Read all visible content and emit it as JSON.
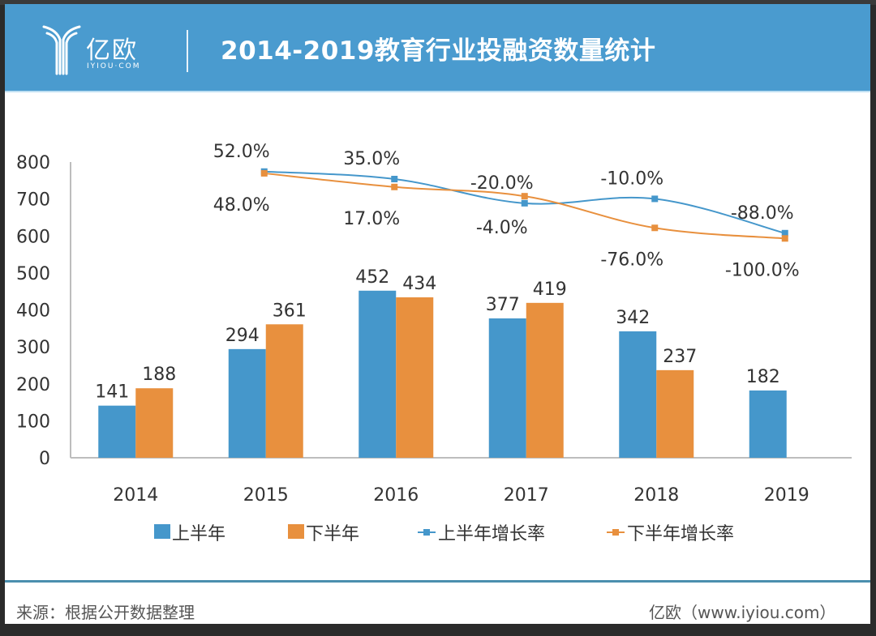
{
  "header": {
    "brand_cn": "亿欧",
    "brand_en": "IYIOU·COM",
    "title": "2014-2019教育行业投融资数量统计"
  },
  "footer": {
    "source": "来源：根据公开数据整理",
    "credit": "亿欧（www.iyiou.com）"
  },
  "colors": {
    "header_bg": "#4a9bcf",
    "first_half": "#4597cb",
    "second_half": "#e8903e",
    "footer_line": "#4a8fae"
  },
  "chart_data": {
    "type": "bar",
    "title": "2014-2019教育行业投融资数量统计",
    "xlabel": "",
    "ylabel": "",
    "ylim": [
      0,
      800
    ],
    "yticks": [
      0,
      100,
      200,
      300,
      400,
      500,
      600,
      700,
      800
    ],
    "grid": false,
    "legend_position": "bottom",
    "categories": [
      "2014",
      "2015",
      "2016",
      "2017",
      "2018",
      "2019"
    ],
    "series": [
      {
        "name": "上半年",
        "type": "bar",
        "values": [
          141,
          294,
          452,
          377,
          342,
          182
        ],
        "labels": [
          "141",
          "294",
          "452",
          "377",
          "342",
          "182"
        ]
      },
      {
        "name": "下半年",
        "type": "bar",
        "values": [
          188,
          361,
          434,
          419,
          237,
          null
        ],
        "labels": [
          "188",
          "361",
          "434",
          "419",
          "237",
          ""
        ]
      },
      {
        "name": "上半年增长率",
        "type": "line",
        "axis": "secondary",
        "values": [
          null,
          52.0,
          35.0,
          -20.0,
          -10.0,
          -88.0
        ],
        "labels": [
          "",
          "52.0%",
          "35.0%",
          "-20.0%",
          "-10.0%",
          "-88.0%"
        ]
      },
      {
        "name": "下半年增长率",
        "type": "line",
        "axis": "secondary",
        "values": [
          null,
          48.0,
          17.0,
          -4.0,
          -76.0,
          -100.0
        ],
        "labels": [
          "",
          "48.0%",
          "17.0%",
          "-4.0%",
          "-76.0%",
          "-100.0%"
        ]
      }
    ]
  }
}
